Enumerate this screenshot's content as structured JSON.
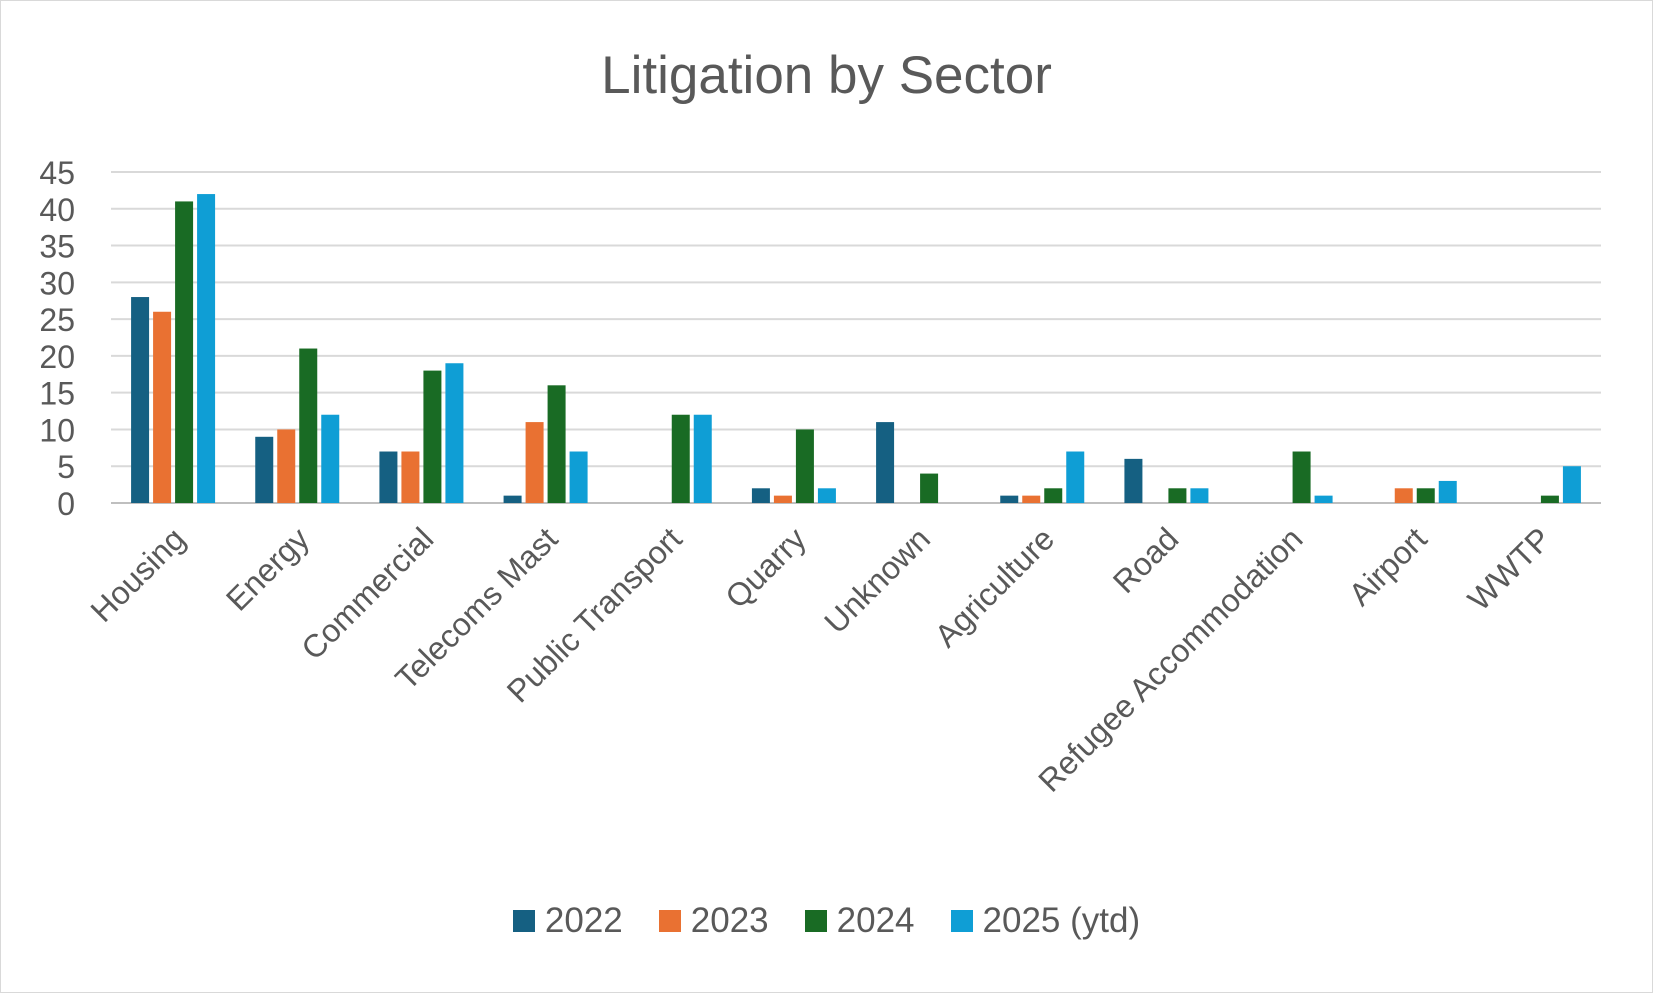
{
  "chart_data": {
    "type": "bar",
    "title": "Litigation by Sector",
    "xlabel": "",
    "ylabel": "",
    "ylim": [
      0,
      45
    ],
    "yticks": [
      0,
      5,
      10,
      15,
      20,
      25,
      30,
      35,
      40,
      45
    ],
    "grid": true,
    "legend_position": "bottom",
    "categories": [
      "Housing",
      "Energy",
      "Commercial",
      "Telecoms Mast",
      "Public Transport",
      "Quarry",
      "Unknown",
      "Agriculture",
      "Road",
      "Refugee Accommodation",
      "Airport",
      "WWTP"
    ],
    "series": [
      {
        "name": "2022",
        "color": "#156082",
        "values": [
          28,
          9,
          7,
          1,
          0,
          2,
          11,
          1,
          6,
          0,
          0,
          0
        ]
      },
      {
        "name": "2023",
        "color": "#E97132",
        "values": [
          26,
          10,
          7,
          11,
          0,
          1,
          0,
          1,
          0,
          0,
          2,
          0
        ]
      },
      {
        "name": "2024",
        "color": "#196B24",
        "values": [
          41,
          21,
          18,
          16,
          12,
          10,
          4,
          2,
          2,
          7,
          2,
          1
        ]
      },
      {
        "name": "2025 (ytd)",
        "color": "#0F9ED5",
        "values": [
          42,
          12,
          19,
          7,
          12,
          2,
          0,
          7,
          2,
          1,
          3,
          5
        ]
      }
    ]
  }
}
